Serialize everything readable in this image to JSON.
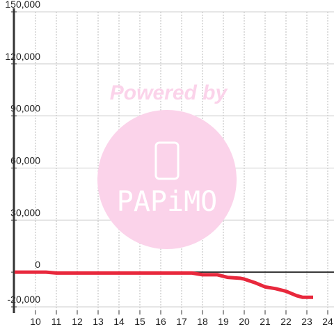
{
  "chart_data": {
    "type": "line",
    "watermark": {
      "title": "Powered by",
      "brand": "PAPiMO"
    },
    "series": [
      {
        "color": "#e8283c",
        "x": [
          9,
          10.5,
          11,
          17.5,
          18,
          18.7,
          19.2,
          19.8,
          20,
          20.5,
          21,
          21.5,
          22,
          22.5,
          22.8,
          23.3
        ],
        "values": [
          0,
          0,
          -500,
          -500,
          -1500,
          -1500,
          -3000,
          -3500,
          -4000,
          -6000,
          -8500,
          -9500,
          -11000,
          -13500,
          -14500,
          -14500
        ]
      }
    ],
    "xlim": [
      9,
      24.3
    ],
    "xticks": [
      10,
      11,
      12,
      13,
      14,
      15,
      16,
      17,
      18,
      19,
      20,
      21,
      22,
      23,
      24
    ],
    "ylim": [
      -20000,
      150000
    ],
    "yticks": [
      {
        "value": -20000,
        "label": "-20,000"
      },
      0,
      {
        "value": 30000,
        "label": "30,000"
      },
      {
        "value": 60000,
        "label": "60,000"
      },
      {
        "value": 90000,
        "label": "90,000"
      },
      {
        "value": 120000,
        "label": "120,000"
      },
      {
        "value": 150000,
        "label": "150,000"
      }
    ],
    "grid": true
  }
}
